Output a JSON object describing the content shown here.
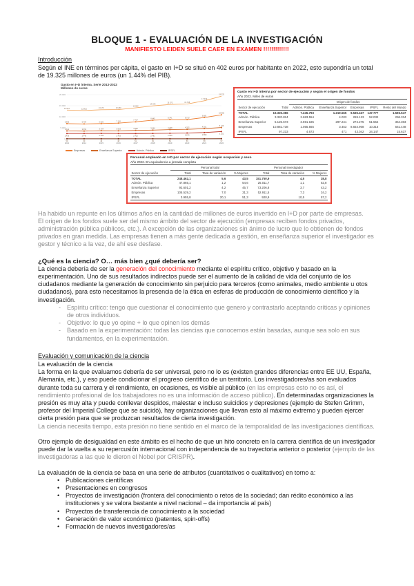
{
  "page": {
    "title": "BLOQUE 1 - EVALUACIÓN DE LA INVESTIGACIÓN",
    "warning": "MANIFIESTO LEIDEN SUELE CAER EN EXAMEN !!!!!!!!!!!!!"
  },
  "colors": {
    "warning_red": "#ff1313",
    "figure_border_red": "#e8483f",
    "gray_text": "#8c8c8c"
  },
  "intro": {
    "heading": "Introducción",
    "paragraph": "Según el INE en términos per cápita, el gasto en I+D se situó en 402 euros por habitante en 2022, esto supondría un total de 19.325 millones de euros (un 1.44% del PIB)."
  },
  "chart_data": {
    "type": "line",
    "title": "Gasto en I+D interna. Serie 2013-2022",
    "subtitle": "Millones de euros",
    "x": [
      2013,
      2014,
      2015,
      2016,
      2017,
      2018,
      2019,
      2020,
      2021,
      2022
    ],
    "series": [
      {
        "name": "Total",
        "color": "#f2a963",
        "values": [
          13012,
          12821,
          13172,
          13260,
          14052,
          14946,
          15572,
          15768,
          17249,
          19325
        ]
      },
      {
        "name": "Empresas",
        "color": "#ed7d31",
        "values": [
          6906,
          6784,
          6920,
          7126,
          7717,
          8445,
          8741,
          8710,
          9681,
          10882
        ]
      },
      {
        "name": "Enseñanza Superior",
        "color": "#d26a2a",
        "values": [
          3611,
          3553,
          3704,
          3653,
          3862,
          3966,
          4208,
          4332,
          4651,
          5126
        ]
      },
      {
        "name": "Admón. Pública",
        "color": "#c0392b",
        "values": [
          2436,
          2445,
          2499,
          2433,
          2422,
          2481,
          2569,
          2670,
          2859,
          3321
        ]
      },
      {
        "name": "IPSFL",
        "color": "#7b2d12",
        "values": [
          59,
          60,
          49,
          48,
          51,
          54,
          54,
          56,
          58,
          97
        ]
      }
    ],
    "ylim": [
      0,
      20000
    ],
    "yticks": [
      0,
      5000,
      10000,
      15000,
      20000
    ],
    "legend": [
      "Empresas",
      "Enseñanza Superior",
      "Admón. Pública",
      "IPSFL"
    ],
    "grid": "light-horizontal",
    "legend_position": "bottom"
  },
  "figure": {
    "table_gasto": {
      "title": "Gasto en I+D interna por sector de ejecución y según el origen de fondos",
      "subtitle": "Año 2022. Miles de euros",
      "col0": "Sector de ejecución",
      "groups": [
        {
          "label": "",
          "cols": [
            "Total"
          ]
        },
        {
          "label": "Origen de fondos",
          "cols": [
            "Admón. Pública",
            "Enseñanza Superior",
            "Empresas",
            "IPSFL",
            "Resto del Mundo"
          ]
        }
      ],
      "rows": [
        {
          "label": "TOTAL",
          "values": [
            "19.325.386",
            "7.245.793",
            "1.219.565",
            "9.535.427",
            "147.777",
            "1.596.547"
          ]
        },
        {
          "label": "Admón. Pública",
          "values": [
            "3.320.824",
            "2.683.554",
            "4.033",
            "269.123",
            "52.032",
            "296.334"
          ]
        },
        {
          "label": "Enseñanza Superior",
          "values": [
            "5.125.673",
            "3.591.185",
            "297.241",
            "274.275",
            "51.554",
            "364.303"
          ]
        },
        {
          "label": "Empresas",
          "values": [
            "10.881.738",
            "1.055.565",
            "3.453",
            "8.654.908",
            "10.316",
            "561.448"
          ]
        },
        {
          "label": "IPSFL",
          "values": [
            "97.233",
            "4.673",
            "471",
            "43.042",
            "34.147",
            "15.637"
          ]
        }
      ]
    },
    "table_personal": {
      "title": "Personal empleado en I+D por sector de ejecución según ocupación y sexo",
      "subtitle": "Año 2022. En equivalencia a jornada completa",
      "col0": "Sector de ejecución",
      "groups": [
        {
          "label": "Personal total",
          "cols": [
            "Total",
            "Tasa de variación",
            "% Mujeres"
          ]
        },
        {
          "label": "Personal investigador",
          "cols": [
            "Total",
            "Tasa de variación",
            "% Mujeres"
          ]
        }
      ],
      "rows": [
        {
          "label": "TOTAL",
          "values": [
            "248.462,1",
            "5,6",
            "43,5",
            "151.750,9",
            "4,5",
            "38,8"
          ]
        },
        {
          "label": "Admón. Pública",
          "values": [
            "47.865,1",
            "1,2",
            "54,6",
            "25.011,7",
            "1,1",
            "52,8"
          ]
        },
        {
          "label": "Enseñanza Superior",
          "values": [
            "92.601,2",
            "4,2",
            "45,7",
            "73.206,8",
            "3,7",
            "43,2"
          ]
        },
        {
          "label": "Empresas",
          "values": [
            "105.529,2",
            "7,0",
            "31,3",
            "52.911,5",
            "7,3",
            "34,2"
          ]
        },
        {
          "label": "IPSFL",
          "values": [
            "3.955,8",
            "20,1",
            "51,3",
            "920,9",
            "10,5",
            "57,2"
          ]
        }
      ]
    }
  },
  "post_figure": {
    "gray_note": "Ha habido un repunte en los últimos años en la cantidad de millones de euros invertido en I+D por parte de empresas.",
    "gray_paragraph": "El origen de los fondos suele ser del mismo ámbito del sector de ejecución (empresas reciben fondos privados, administración pública públicos, etc.). A excepción de las organizaciones sin ánimo de lucro que lo obtienen de fondos privados en gran medida. Las empresas tienen a más gente dedicada a gestión, en enseñanza superior el investigador es gestor y técnico a la vez, de ahí ese desfase."
  },
  "que_es": {
    "heading": "¿Qué es la ciencia? O… más bien ¿qué debería ser?",
    "p_before": "La ciencia debería de ser la ",
    "p_red": "generación del conocimiento",
    "p_after": " mediante el espíritu crítico, objetivo y basado en la experimentación. Uno de sus resultados indirectos puede ser el aumento de la calidad de vida del conjunto de los ciudadanos mediante la generación de conocimiento sin perjuicio para terceros (como animales, medio ambiente u otos ciudadanos), para esto necesitamos la presencia de la ética en esferas de producción de conocimiento científico y la investigación.",
    "dash_items": [
      "Espíritu crítico: tengo que cuestionar el conocimiento que genero y contrastarlo aceptando críticas y opiniones de otros individuos.",
      "Objetivo: lo que yo opine + lo que opinen los demás",
      "Basado en la experimentación: todas las ciencias que conocemos están basadas, aunque sea solo en sus fundamentos, en la experimentación."
    ]
  },
  "evaluacion": {
    "heading": "Evaluación y comunicación de la ciencia",
    "subheading": "La evaluación de la ciencia",
    "p1_black_a": "La forma en la que evaluamos debería de ser universal, pero no lo es (existen grandes diferencias entre EE UU, España, Alemania, etc.), y eso puede condicionar el progreso científico de un territorio. Los investigadores/as son evaluados durante toda su carrera y el rendimiento, en ocasiones, es visible al público ",
    "p1_gray": "(en las empresas esto no es así, el rendimiento profesional de los trabajadores no es una información de acceso público)",
    "p1_black_b": ". En determinadas organizaciones la presión es muy alta y puede conllevar despidos, malestar e incluso suicidios y depresiones (ejemplo de Stefen Grimm, profesor del Imperial College que se suicidó), hay organizaciones que llevan esto al máximo extremo y pueden ejercer cierta presión para que se produzcan resultados de cierta investigación.",
    "gray_note": "La ciencia necesita tiempo, esta presión no tiene sentido en el marco de la temporalidad de las investigaciones científicas.",
    "otro_black": "Otro ejemplo de desigualdad en este ámbito es el hecho de que un hito concreto en la carrera científica de un investigador puede dar la vuelta a su repercusión internacional con independencia de su trayectoria anterior o posterior ",
    "otro_gray": "(ejemplo de las investigadoras a las que le dieron el Nobel por CRISPR)",
    "otro_end": ".",
    "attrs_intro": "La evaluación de la ciencia se basa en una serie de atributos (cuantitativos o cualitativos) en torno a:",
    "bullets": [
      "Publicaciones científicas",
      "Presentaciones en congresos",
      "Proyectos de investigación (frontera del conocimiento o retos de la sociedad; dan rédito económico a las instituciones y se valora bastante a nivel nacional – da importancia al país)",
      "Proyectos de transferencia de conocimiento a la sociedad",
      "Generación de valor económico (patentes, spin-offs)",
      "Formación de nuevos investigadores/as"
    ]
  }
}
